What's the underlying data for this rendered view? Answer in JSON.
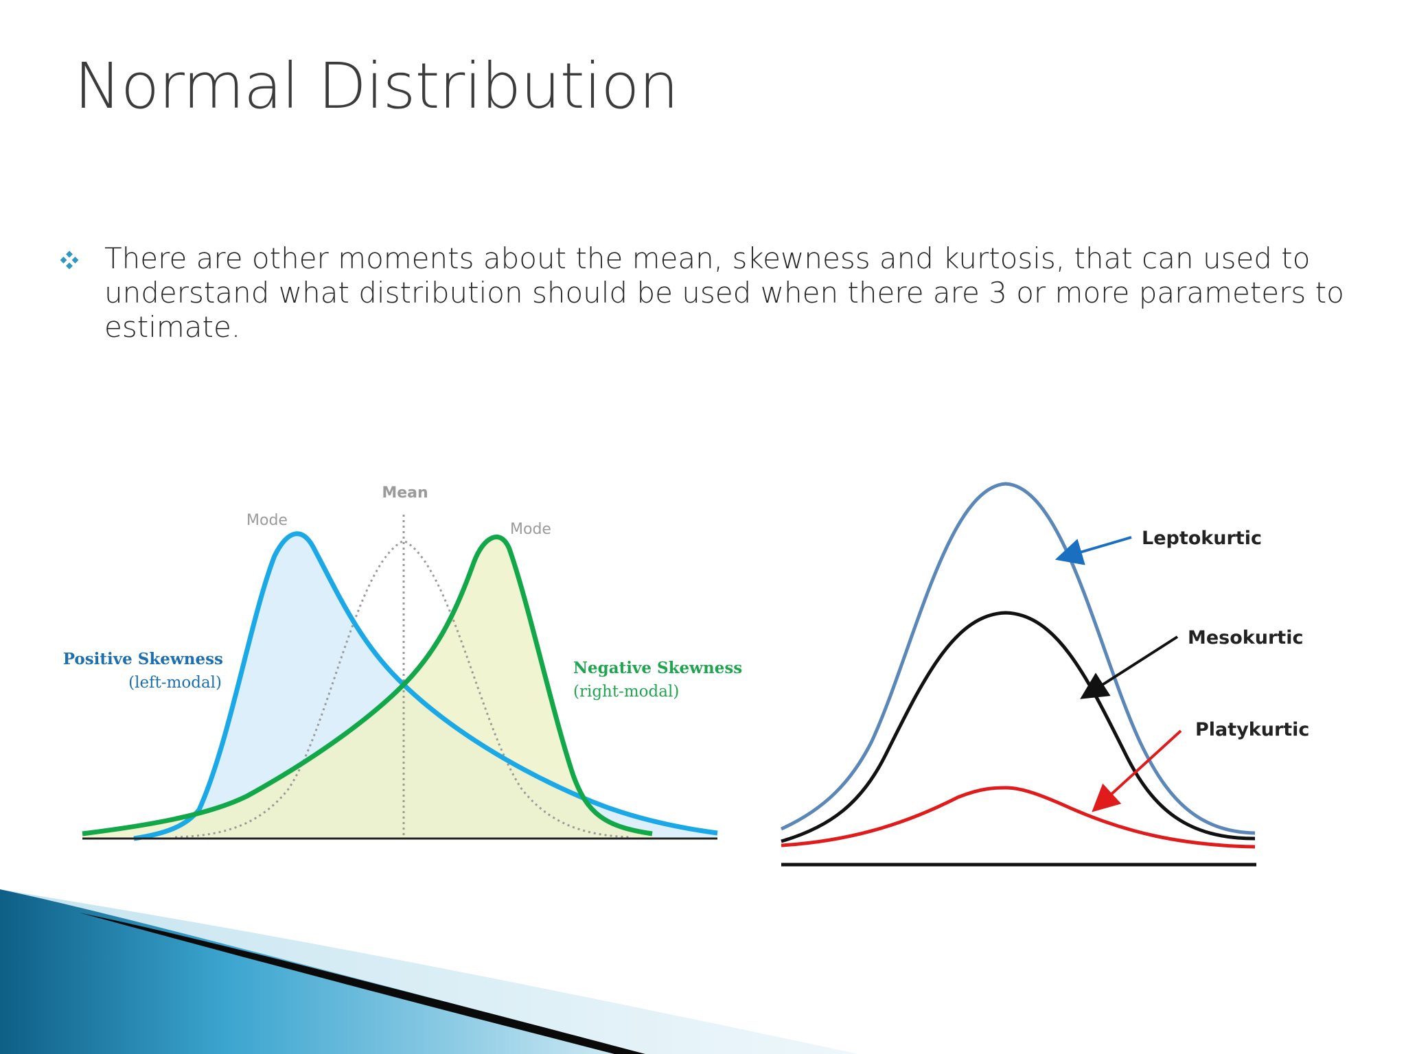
{
  "slide": {
    "title": "Normal Distribution",
    "bullet": "There are other moments about the mean, skewness and kurtosis, that can used to understand what distribution should be used when there are 3 or more parameters to estimate.",
    "bullet_icon": "diamond-cluster-icon",
    "accent_color": "#1a8fb8"
  },
  "skew_figure": {
    "mean_label": "Mean",
    "mode_left_label": "Mode",
    "mode_right_label": "Mode",
    "positive_title": "Positive Skewness",
    "positive_sub": "(left-modal)",
    "negative_title": "Negative Skewness",
    "negative_sub": "(right-modal)",
    "colors": {
      "positive": "#1aa9e6",
      "negative": "#12a84a",
      "normal": "#9a9a9a"
    }
  },
  "kurtosis_figure": {
    "lepto_label": "Leptokurtic",
    "meso_label": "Mesokurtic",
    "platy_label": "Platykurtic",
    "colors": {
      "lepto": "#5a86b8",
      "meso": "#111111",
      "platy": "#e01b1b"
    }
  }
}
